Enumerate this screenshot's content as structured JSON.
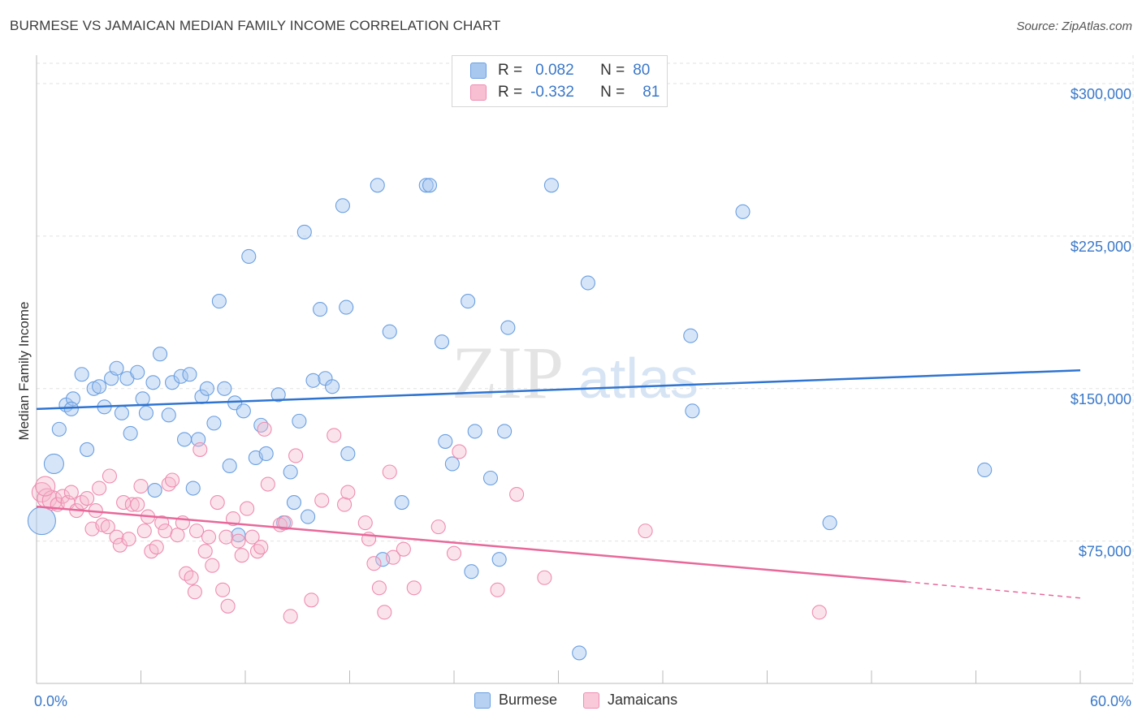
{
  "header": {
    "title": "BURMESE VS JAMAICAN MEDIAN FAMILY INCOME CORRELATION CHART",
    "source": "Source: ZipAtlas.com"
  },
  "watermark": {
    "zip": "ZIP",
    "atlas": "atlas"
  },
  "legend": {
    "rows": [
      {
        "r_label": "R =",
        "r_value": "0.082",
        "n_label": "N =",
        "n_value": "80",
        "color": "#a9c8f0",
        "border": "#6a9fe0"
      },
      {
        "r_label": "R =",
        "r_value": "-0.332",
        "n_label": "N =",
        "n_value": "81",
        "color": "#f8bfd2",
        "border": "#ee8db0"
      }
    ]
  },
  "bottom_legend": {
    "series1": "Burmese",
    "series2": "Jamaicans"
  },
  "chart_data": {
    "type": "scatter",
    "xlabel": "",
    "ylabel": "Median Family Income",
    "x_tick_labels": [
      "0.0%",
      "60.0%"
    ],
    "y_tick_labels": [
      "$75,000",
      "$150,000",
      "$225,000",
      "$300,000"
    ],
    "xlim": [
      0,
      60
    ],
    "ylim": [
      5000,
      310000
    ],
    "grid": true,
    "legend_position": "top-center",
    "series": [
      {
        "name": "Burmese",
        "color": "#6a9fe0",
        "fill": "rgba(166,198,240,0.45)",
        "trend": {
          "x": [
            0,
            60
          ],
          "y": [
            140000,
            159000
          ]
        },
        "points": [
          [
            0.3,
            85000
          ],
          [
            1.0,
            113000
          ],
          [
            1.3,
            130000
          ],
          [
            1.7,
            142000
          ],
          [
            2.1,
            145000
          ],
          [
            2.6,
            157000
          ],
          [
            2.9,
            120000
          ],
          [
            3.3,
            150000
          ],
          [
            3.6,
            151000
          ],
          [
            3.9,
            141000
          ],
          [
            4.3,
            155000
          ],
          [
            4.6,
            160000
          ],
          [
            4.9,
            138000
          ],
          [
            5.2,
            155000
          ],
          [
            5.4,
            128000
          ],
          [
            5.8,
            158000
          ],
          [
            6.1,
            145000
          ],
          [
            6.3,
            138000
          ],
          [
            6.7,
            153000
          ],
          [
            7.1,
            167000
          ],
          [
            7.6,
            137000
          ],
          [
            7.8,
            153000
          ],
          [
            8.3,
            156000
          ],
          [
            8.5,
            125000
          ],
          [
            8.8,
            157000
          ],
          [
            9.3,
            125000
          ],
          [
            9.5,
            146000
          ],
          [
            9.8,
            150000
          ],
          [
            10.2,
            133000
          ],
          [
            10.5,
            193000
          ],
          [
            10.8,
            150000
          ],
          [
            11.1,
            112000
          ],
          [
            11.4,
            143000
          ],
          [
            11.9,
            139000
          ],
          [
            12.2,
            215000
          ],
          [
            12.6,
            116000
          ],
          [
            12.9,
            132000
          ],
          [
            13.2,
            118000
          ],
          [
            13.9,
            147000
          ],
          [
            14.2,
            84000
          ],
          [
            14.6,
            109000
          ],
          [
            14.8,
            94000
          ],
          [
            15.1,
            134000
          ],
          [
            15.4,
            227000
          ],
          [
            15.6,
            87000
          ],
          [
            15.9,
            154000
          ],
          [
            16.3,
            189000
          ],
          [
            16.6,
            155000
          ],
          [
            17.0,
            151000
          ],
          [
            17.6,
            240000
          ],
          [
            17.8,
            190000
          ],
          [
            19.6,
            250000
          ],
          [
            19.9,
            66000
          ],
          [
            20.3,
            178000
          ],
          [
            21.0,
            94000
          ],
          [
            22.4,
            250000
          ],
          [
            22.6,
            250000
          ],
          [
            23.3,
            173000
          ],
          [
            23.5,
            124000
          ],
          [
            23.9,
            113000
          ],
          [
            24.8,
            193000
          ],
          [
            25.0,
            60000
          ],
          [
            25.2,
            129000
          ],
          [
            26.1,
            106000
          ],
          [
            26.6,
            66000
          ],
          [
            26.9,
            129000
          ],
          [
            27.1,
            180000
          ],
          [
            29.6,
            250000
          ],
          [
            31.2,
            20000
          ],
          [
            31.7,
            202000
          ],
          [
            37.6,
            176000
          ],
          [
            37.7,
            139000
          ],
          [
            40.6,
            237000
          ],
          [
            45.6,
            84000
          ],
          [
            54.5,
            110000
          ],
          [
            17.9,
            118000
          ],
          [
            9.0,
            101000
          ],
          [
            6.8,
            100000
          ],
          [
            11.6,
            78000
          ],
          [
            2.0,
            140000
          ]
        ]
      },
      {
        "name": "Jamaicans",
        "color": "#ee8db0",
        "fill": "rgba(246,184,205,0.4)",
        "trend": {
          "x": [
            0,
            50
          ],
          "y": [
            92000,
            55000
          ]
        },
        "trend_dashed": {
          "x": [
            50,
            60
          ],
          "y": [
            55000,
            47000
          ]
        },
        "points": [
          [
            0.3,
            99000
          ],
          [
            0.6,
            96000
          ],
          [
            0.9,
            95000
          ],
          [
            1.2,
            93000
          ],
          [
            1.5,
            97000
          ],
          [
            1.8,
            94000
          ],
          [
            2.0,
            99000
          ],
          [
            2.3,
            90000
          ],
          [
            2.6,
            94000
          ],
          [
            2.9,
            96000
          ],
          [
            3.2,
            81000
          ],
          [
            3.4,
            90000
          ],
          [
            3.6,
            101000
          ],
          [
            3.8,
            83000
          ],
          [
            4.1,
            82000
          ],
          [
            4.2,
            107000
          ],
          [
            4.6,
            77000
          ],
          [
            4.8,
            73000
          ],
          [
            5.0,
            94000
          ],
          [
            5.3,
            76000
          ],
          [
            5.5,
            93000
          ],
          [
            5.8,
            93000
          ],
          [
            6.0,
            102000
          ],
          [
            6.2,
            80000
          ],
          [
            6.4,
            87000
          ],
          [
            6.6,
            70000
          ],
          [
            6.9,
            72000
          ],
          [
            7.2,
            84000
          ],
          [
            7.4,
            80000
          ],
          [
            7.6,
            103000
          ],
          [
            7.8,
            105000
          ],
          [
            8.1,
            78000
          ],
          [
            8.4,
            84000
          ],
          [
            8.6,
            59000
          ],
          [
            8.9,
            57000
          ],
          [
            9.2,
            80000
          ],
          [
            9.4,
            120000
          ],
          [
            9.7,
            70000
          ],
          [
            9.9,
            77000
          ],
          [
            10.1,
            63000
          ],
          [
            10.4,
            94000
          ],
          [
            10.7,
            51000
          ],
          [
            10.9,
            77000
          ],
          [
            11.3,
            86000
          ],
          [
            11.6,
            75000
          ],
          [
            11.8,
            68000
          ],
          [
            12.1,
            91000
          ],
          [
            12.4,
            77000
          ],
          [
            12.7,
            70000
          ],
          [
            12.9,
            72000
          ],
          [
            13.1,
            130000
          ],
          [
            13.3,
            103000
          ],
          [
            14.0,
            83000
          ],
          [
            14.3,
            84000
          ],
          [
            14.6,
            38000
          ],
          [
            14.9,
            117000
          ],
          [
            15.8,
            46000
          ],
          [
            16.4,
            95000
          ],
          [
            17.1,
            127000
          ],
          [
            17.7,
            93000
          ],
          [
            17.9,
            99000
          ],
          [
            18.9,
            84000
          ],
          [
            19.1,
            76000
          ],
          [
            19.4,
            64000
          ],
          [
            19.7,
            52000
          ],
          [
            20.0,
            40000
          ],
          [
            20.5,
            67000
          ],
          [
            21.1,
            71000
          ],
          [
            21.7,
            52000
          ],
          [
            23.1,
            82000
          ],
          [
            24.0,
            69000
          ],
          [
            24.3,
            119000
          ],
          [
            26.5,
            51000
          ],
          [
            27.6,
            98000
          ],
          [
            29.2,
            57000
          ],
          [
            35.0,
            80000
          ],
          [
            45.0,
            40000
          ],
          [
            20.3,
            109000
          ],
          [
            9.1,
            50000
          ],
          [
            11.0,
            43000
          ],
          [
            0.5,
            102000
          ]
        ]
      }
    ]
  }
}
